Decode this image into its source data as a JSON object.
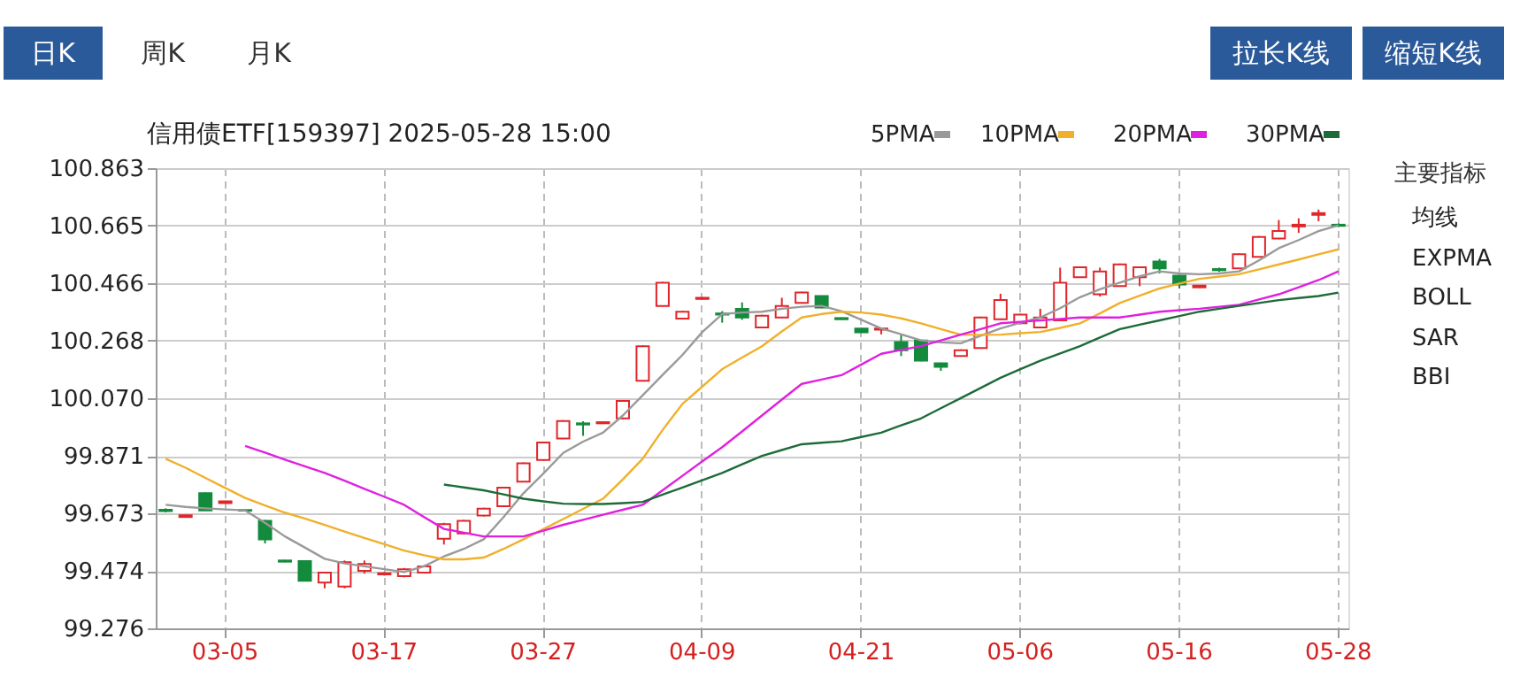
{
  "chart_data": {
    "type": "candlestick",
    "title": "信用债ETF[159397] 2025-05-28 15:00",
    "categories": [
      null,
      null,
      null,
      "03-05",
      null,
      null,
      null,
      null,
      null,
      null,
      null,
      "03-17",
      null,
      null,
      null,
      null,
      null,
      null,
      null,
      "03-27",
      null,
      null,
      null,
      null,
      null,
      null,
      null,
      "04-09",
      null,
      null,
      null,
      null,
      null,
      null,
      null,
      "04-21",
      null,
      null,
      null,
      null,
      null,
      null,
      null,
      "05-06",
      null,
      null,
      null,
      null,
      null,
      null,
      null,
      "05-16",
      null,
      null,
      null,
      null,
      null,
      null,
      null,
      "05-28"
    ],
    "ohlc": [
      [
        99.685,
        99.69,
        99.676,
        99.68
      ],
      [
        99.66,
        99.668,
        99.658,
        99.666
      ],
      [
        99.742,
        99.745,
        99.683,
        99.683
      ],
      [
        99.708,
        99.716,
        99.706,
        99.714
      ],
      [
        99.684,
        99.686,
        99.68,
        99.682
      ],
      [
        99.647,
        99.65,
        99.569,
        99.583
      ],
      [
        99.51,
        99.512,
        99.504,
        99.506
      ],
      [
        99.508,
        99.508,
        99.44,
        99.44
      ],
      [
        99.434,
        99.47,
        99.414,
        99.468
      ],
      [
        99.42,
        99.51,
        99.414,
        99.504
      ],
      [
        99.474,
        99.51,
        99.465,
        99.498
      ],
      [
        99.462,
        99.47,
        99.458,
        99.466
      ],
      [
        99.456,
        99.484,
        99.452,
        99.48
      ],
      [
        99.468,
        99.494,
        99.466,
        99.49
      ],
      [
        99.585,
        99.64,
        99.565,
        99.635
      ],
      [
        99.603,
        99.65,
        99.6,
        99.647
      ],
      [
        99.665,
        99.692,
        99.662,
        99.689
      ],
      [
        99.697,
        99.764,
        99.694,
        99.761
      ],
      [
        99.782,
        99.848,
        99.78,
        99.845
      ],
      [
        99.857,
        99.92,
        99.855,
        99.917
      ],
      [
        99.931,
        99.994,
        99.929,
        99.991
      ],
      [
        99.983,
        99.99,
        99.94,
        99.979
      ],
      [
        99.983,
        99.989,
        99.981,
        99.987
      ],
      [
        100.0,
        100.063,
        99.998,
        100.06
      ],
      [
        100.13,
        100.252,
        100.128,
        100.249
      ],
      [
        100.388,
        100.471,
        100.386,
        100.468
      ],
      [
        100.344,
        100.371,
        100.342,
        100.368
      ],
      [
        100.412,
        100.418,
        100.41,
        100.416
      ],
      [
        100.362,
        100.37,
        100.33,
        100.358
      ],
      [
        100.378,
        100.4,
        100.34,
        100.348
      ],
      [
        100.314,
        100.357,
        100.312,
        100.354
      ],
      [
        100.348,
        100.416,
        100.346,
        100.388
      ],
      [
        100.398,
        100.437,
        100.396,
        100.434
      ],
      [
        100.422,
        100.424,
        100.38,
        100.382
      ],
      [
        100.346,
        100.348,
        100.34,
        100.342
      ],
      [
        100.31,
        100.312,
        100.295,
        100.297
      ],
      [
        100.306,
        100.312,
        100.29,
        100.31
      ],
      [
        100.263,
        100.287,
        100.215,
        100.235
      ],
      [
        100.269,
        100.271,
        100.197,
        100.199
      ],
      [
        100.19,
        100.192,
        100.164,
        100.178
      ],
      [
        100.215,
        100.238,
        100.213,
        100.235
      ],
      [
        100.243,
        100.351,
        100.241,
        100.348
      ],
      [
        100.342,
        100.43,
        100.34,
        100.408
      ],
      [
        100.328,
        100.361,
        100.326,
        100.358
      ],
      [
        100.314,
        100.378,
        100.312,
        100.348
      ],
      [
        100.338,
        100.52,
        100.336,
        100.468
      ],
      [
        100.487,
        100.524,
        100.485,
        100.521
      ],
      [
        100.428,
        100.52,
        100.42,
        100.507
      ],
      [
        100.456,
        100.534,
        100.454,
        100.531
      ],
      [
        100.487,
        100.524,
        100.456,
        100.521
      ],
      [
        100.541,
        100.55,
        100.5,
        100.517
      ],
      [
        100.492,
        100.494,
        100.448,
        100.462
      ],
      [
        100.452,
        100.46,
        100.45,
        100.458
      ],
      [
        100.515,
        100.52,
        100.505,
        100.511
      ],
      [
        100.517,
        100.569,
        100.515,
        100.566
      ],
      [
        100.557,
        100.629,
        100.555,
        100.626
      ],
      [
        100.62,
        100.684,
        100.618,
        100.646
      ],
      [
        100.662,
        100.69,
        100.64,
        100.668
      ],
      [
        100.702,
        100.72,
        100.68,
        100.708
      ],
      [
        100.668,
        100.672,
        100.66,
        100.664
      ]
    ],
    "colors": [
      "#138a3c",
      "#e0262a",
      "#138a3c",
      "#e0262a",
      "#138a3c",
      "#138a3c",
      "#138a3c",
      "#138a3c",
      "#e0262a",
      "#e0262a",
      "#e0262a",
      "#e0262a",
      "#e0262a",
      "#e0262a",
      "#e0262a",
      "#e0262a",
      "#e0262a",
      "#e0262a",
      "#e0262a",
      "#e0262a",
      "#e0262a",
      "#138a3c",
      "#e0262a",
      "#e0262a",
      "#e0262a",
      "#e0262a",
      "#e0262a",
      "#e0262a",
      "#138a3c",
      "#138a3c",
      "#e0262a",
      "#e0262a",
      "#e0262a",
      "#138a3c",
      "#138a3c",
      "#138a3c",
      "#e0262a",
      "#138a3c",
      "#138a3c",
      "#138a3c",
      "#e0262a",
      "#e0262a",
      "#e0262a",
      "#e0262a",
      "#e0262a",
      "#e0262a",
      "#e0262a",
      "#e0262a",
      "#e0262a",
      "#e0262a",
      "#138a3c",
      "#138a3c",
      "#e0262a",
      "#138a3c",
      "#e0262a",
      "#e0262a",
      "#e0262a",
      "#e0262a",
      "#e0262a",
      "#138a3c"
    ],
    "series": [
      {
        "name": "5PMA",
        "type": "line",
        "color": "#9a9a9a",
        "values": [
          99.702,
          99.695,
          99.69,
          99.686,
          99.683,
          99.64,
          99.593,
          99.555,
          99.516,
          99.5,
          99.49,
          99.48,
          99.47,
          99.49,
          99.524,
          99.55,
          99.583,
          99.66,
          99.742,
          99.81,
          99.881,
          99.92,
          99.951,
          100.01,
          100.08,
          100.15,
          100.219,
          100.298,
          100.36,
          100.365,
          100.368,
          100.378,
          100.385,
          100.388,
          100.37,
          100.34,
          100.31,
          100.29,
          100.269,
          100.262,
          100.259,
          100.285,
          100.31,
          100.33,
          100.348,
          100.38,
          100.418,
          100.445,
          100.468,
          100.49,
          100.507,
          100.5,
          100.497,
          100.5,
          100.507,
          100.545,
          100.587,
          100.615,
          100.646,
          100.666
        ]
      },
      {
        "name": "10PMA",
        "type": "line",
        "color": "#f0b02a",
        "values": [
          99.861,
          99.83,
          99.795,
          99.76,
          99.726,
          99.7,
          99.675,
          99.655,
          99.633,
          99.61,
          99.588,
          99.566,
          99.544,
          99.528,
          99.514,
          99.514,
          99.52,
          99.55,
          99.583,
          99.618,
          99.653,
          99.688,
          99.723,
          99.79,
          99.861,
          99.96,
          100.05,
          100.11,
          100.17,
          100.21,
          100.249,
          100.3,
          100.348,
          100.36,
          100.368,
          100.365,
          100.358,
          100.345,
          100.328,
          100.308,
          100.289,
          100.288,
          100.289,
          100.294,
          100.298,
          100.312,
          100.328,
          100.362,
          100.398,
          100.423,
          100.448,
          100.465,
          100.481,
          100.489,
          100.497,
          100.514,
          100.531,
          100.548,
          100.566,
          100.583
        ]
      },
      {
        "name": "20PMA",
        "type": "line",
        "color": "#e020e0",
        "values": [
          null,
          null,
          null,
          null,
          99.905,
          99.882,
          99.858,
          99.835,
          99.812,
          99.785,
          99.757,
          99.73,
          99.702,
          99.66,
          99.619,
          99.606,
          99.593,
          99.593,
          99.593,
          99.613,
          99.633,
          99.65,
          99.668,
          99.685,
          99.702,
          99.752,
          99.802,
          99.852,
          99.901,
          99.955,
          100.01,
          100.065,
          100.119,
          100.134,
          100.149,
          100.186,
          100.223,
          100.236,
          100.249,
          100.269,
          100.289,
          100.308,
          100.328,
          100.333,
          100.338,
          100.343,
          100.348,
          100.348,
          100.348,
          100.358,
          100.368,
          100.373,
          100.378,
          100.385,
          100.392,
          100.41,
          100.428,
          100.452,
          100.477,
          100.507
        ]
      },
      {
        "name": "30PMA",
        "type": "line",
        "color": "#1e6b3a",
        "values": [
          null,
          null,
          null,
          null,
          null,
          null,
          null,
          null,
          null,
          null,
          null,
          null,
          null,
          null,
          99.772,
          99.762,
          99.752,
          99.738,
          99.723,
          99.714,
          99.706,
          99.705,
          99.705,
          99.708,
          99.712,
          99.737,
          99.762,
          99.787,
          99.812,
          99.842,
          99.871,
          99.891,
          99.911,
          99.916,
          99.921,
          99.936,
          99.951,
          99.976,
          100.0,
          100.035,
          100.07,
          100.105,
          100.14,
          100.17,
          100.199,
          100.224,
          100.249,
          100.279,
          100.308,
          100.323,
          100.338,
          100.353,
          100.368,
          100.378,
          100.388,
          100.398,
          100.408,
          100.415,
          100.422,
          100.434
        ]
      }
    ],
    "ylim": [
      99.276,
      100.863
    ],
    "yticks": [
      99.276,
      99.474,
      99.673,
      99.871,
      {
        "value": 100.07,
        "label": "100.070"
      },
      100.268,
      100.466,
      100.665,
      100.863
    ],
    "grid": true,
    "legend": "top right",
    "annotations": [
      "日K",
      "周K",
      "月K",
      "拉长K线",
      "缩短K线",
      "主要指标",
      "均线",
      "EXPMA",
      "BOLL",
      "SAR",
      "BBI"
    ]
  }
}
